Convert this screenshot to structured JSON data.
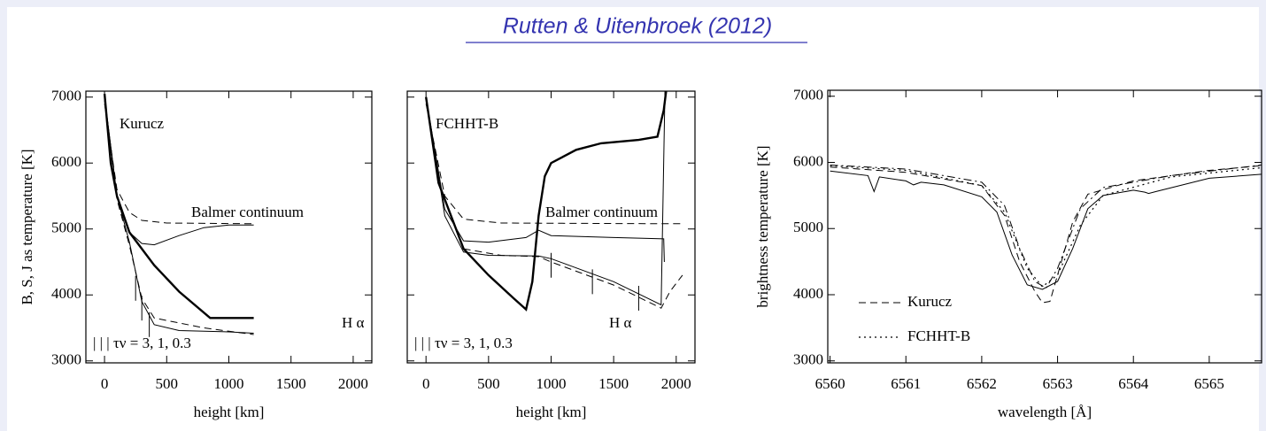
{
  "header": {
    "citation": "Rutten & Uitenbroek (2012)"
  },
  "chart_data": [
    {
      "type": "line",
      "xlabel": "height  [km]",
      "ylabel": "B, S, J  as temperature [K]",
      "xlim": [
        -150,
        2150
      ],
      "ylim": [
        2970,
        7090
      ],
      "xticks": [
        0,
        500,
        1000,
        1500,
        2000
      ],
      "yticks": [
        3000,
        4000,
        5000,
        6000,
        7000
      ],
      "ytick_labels": true,
      "annotations": [
        "Kurucz",
        "Balmer continuum",
        "H α",
        "| | |  τν = 3, 1, 0.3"
      ],
      "series": [
        {
          "style": "solid",
          "width": 2.4,
          "color": "#000000",
          "x": [
            0,
            50,
            100,
            200,
            300,
            400,
            600,
            850,
            1200
          ],
          "y": [
            7050,
            6000,
            5500,
            4950,
            4700,
            4450,
            4050,
            3650,
            3650
          ]
        },
        {
          "style": "solid",
          "width": 1,
          "color": "#000000",
          "x": [
            0,
            100,
            200,
            300,
            400,
            600,
            800,
            1000,
            1200
          ],
          "y": [
            7000,
            5500,
            4950,
            4780,
            4760,
            4900,
            5020,
            5060,
            5060
          ]
        },
        {
          "style": "dashed",
          "width": 1,
          "color": "#000000",
          "x": [
            0,
            100,
            200,
            300,
            500,
            1200
          ],
          "y": [
            6900,
            5600,
            5250,
            5130,
            5090,
            5080
          ]
        },
        {
          "style": "solid",
          "width": 1,
          "color": "#000000",
          "x": [
            0,
            100,
            200,
            300,
            400,
            600,
            1000,
            1200
          ],
          "y": [
            7000,
            5500,
            4800,
            3900,
            3550,
            3460,
            3440,
            3420
          ]
        },
        {
          "style": "dashed",
          "width": 1,
          "color": "#000000",
          "x": [
            0,
            100,
            200,
            300,
            400,
            800,
            1200
          ],
          "y": [
            6950,
            5450,
            4750,
            3950,
            3650,
            3500,
            3400
          ]
        }
      ],
      "markers": {
        "x": [
          250,
          300,
          360
        ],
        "y": [
          4100,
          3800,
          3550
        ]
      }
    },
    {
      "type": "line",
      "xlabel": "height  [km]",
      "xlim": [
        -150,
        2150
      ],
      "ylim": [
        2970,
        7090
      ],
      "xticks": [
        0,
        500,
        1000,
        1500,
        2000
      ],
      "yticks": [
        3000,
        4000,
        5000,
        6000,
        7000
      ],
      "ytick_labels": false,
      "annotations": [
        "FCHHT-B",
        "Balmer continuum",
        "H α",
        "| | |  τν = 3, 1, 0.3"
      ],
      "series": [
        {
          "style": "solid",
          "width": 2.4,
          "color": "#000000",
          "x": [
            0,
            100,
            300,
            500,
            700,
            800,
            850,
            900,
            950,
            1000,
            1200,
            1400,
            1700,
            1850,
            1900,
            1920
          ],
          "y": [
            7000,
            5700,
            4700,
            4300,
            3950,
            3780,
            4200,
            5200,
            5800,
            6000,
            6200,
            6300,
            6350,
            6400,
            6800,
            7100
          ]
        },
        {
          "style": "dashed",
          "width": 1,
          "color": "#000000",
          "x": [
            0,
            150,
            300,
            600,
            1900,
            2050
          ],
          "y": [
            6900,
            5500,
            5150,
            5090,
            5080,
            5080
          ]
        },
        {
          "style": "solid",
          "width": 1,
          "color": "#000000",
          "x": [
            0,
            150,
            300,
            500,
            800,
            900,
            1000,
            1500,
            1900,
            1905
          ],
          "y": [
            7000,
            5300,
            4820,
            4800,
            4870,
            4980,
            4900,
            4870,
            4850,
            4500
          ]
        },
        {
          "style": "solid",
          "width": 1,
          "color": "#000000",
          "x": [
            0,
            150,
            300,
            500,
            900,
            1000,
            1500,
            1880,
            1910
          ],
          "y": [
            7000,
            5200,
            4650,
            4600,
            4590,
            4550,
            4200,
            3850,
            7100
          ]
        },
        {
          "style": "dashed",
          "width": 1,
          "color": "#000000",
          "x": [
            300,
            600,
            900,
            1000,
            1500,
            1880,
            1950,
            2050
          ],
          "y": [
            4700,
            4600,
            4580,
            4500,
            4150,
            3800,
            4050,
            4300
          ]
        }
      ],
      "markers": {
        "x": [
          1000,
          1330,
          1700
        ],
        "y": [
          4450,
          4200,
          3950
        ]
      }
    },
    {
      "type": "line",
      "xlabel": "wavelength  [Å]",
      "ylabel": "brightness temperature  [K]",
      "xlim": [
        6559.97,
        6565.69
      ],
      "ylim": [
        2970,
        7090
      ],
      "xticks": [
        6560,
        6561,
        6562,
        6563,
        6564,
        6565
      ],
      "yticks": [
        3000,
        4000,
        5000,
        6000,
        7000
      ],
      "ytick_labels": true,
      "series": [
        {
          "style": "solid",
          "width": 1,
          "color": "#000000",
          "x": [
            6560,
            6560.5,
            6560.58,
            6560.65,
            6561,
            6561.1,
            6561.2,
            6561.5,
            6562,
            6562.2,
            6562.4,
            6562.6,
            6562.8,
            6563,
            6563.2,
            6563.4,
            6563.6,
            6564,
            6564.15,
            6564.2,
            6564.3,
            6565,
            6565.69
          ],
          "y": [
            5870,
            5800,
            5560,
            5780,
            5720,
            5660,
            5700,
            5660,
            5480,
            5250,
            4600,
            4150,
            4080,
            4200,
            4700,
            5300,
            5500,
            5580,
            5550,
            5530,
            5560,
            5760,
            5820
          ]
        },
        {
          "name": "Kurucz",
          "style": "dashed",
          "width": 1,
          "color": "#000000",
          "x": [
            6560,
            6561,
            6562,
            6562.3,
            6562.5,
            6562.7,
            6562.8,
            6562.9,
            6563,
            6563.2,
            6563.4,
            6564,
            6565,
            6565.69
          ],
          "y": [
            5930,
            5850,
            5650,
            5200,
            4500,
            4050,
            3880,
            3900,
            4300,
            5100,
            5520,
            5720,
            5880,
            5950
          ]
        },
        {
          "name": "FCHHT-B",
          "style": "dotted",
          "width": 1.2,
          "color": "#000000",
          "x": [
            6560,
            6561,
            6562,
            6562.3,
            6562.6,
            6562.8,
            6563,
            6563.3,
            6563.6,
            6564.5,
            6565.69
          ],
          "y": [
            5950,
            5880,
            5650,
            5250,
            4400,
            4120,
            4300,
            5050,
            5500,
            5780,
            5920
          ]
        },
        {
          "style": "dashdot",
          "width": 1,
          "color": "#000000",
          "x": [
            6560,
            6561,
            6562,
            6562.3,
            6562.5,
            6562.7,
            6562.85,
            6563,
            6563.3,
            6563.6,
            6564.5,
            6565.69
          ],
          "y": [
            5960,
            5900,
            5700,
            5350,
            4700,
            4200,
            4100,
            4400,
            5300,
            5620,
            5800,
            5960
          ]
        }
      ]
    }
  ]
}
